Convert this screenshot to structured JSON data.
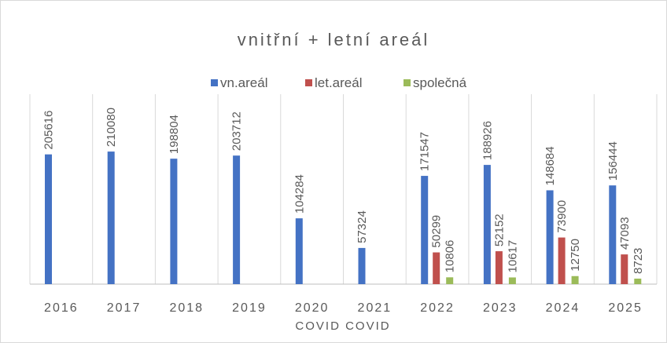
{
  "chart_data": {
    "type": "bar",
    "title": "vnitřní + letní areál",
    "categories": [
      "2016",
      "2017",
      "2018",
      "2019",
      "2020",
      "2021",
      "2022",
      "2023",
      "2024",
      "2025"
    ],
    "x_label": "COVID COVID",
    "series": [
      {
        "name": "vn.areál",
        "color": "#4472c4",
        "values": [
          205616,
          210080,
          198804,
          203712,
          104284,
          57324,
          171547,
          188926,
          148684,
          156444
        ]
      },
      {
        "name": "let.areál",
        "color": "#c0504d",
        "values": [
          null,
          null,
          null,
          null,
          null,
          null,
          50299,
          52152,
          73900,
          47093
        ]
      },
      {
        "name": "společná",
        "color": "#9bbb59",
        "values": [
          null,
          null,
          null,
          null,
          null,
          null,
          10806,
          10617,
          12750,
          8723
        ]
      }
    ],
    "ylim": [
      0,
      250000
    ],
    "grid": true,
    "legend": "top"
  }
}
